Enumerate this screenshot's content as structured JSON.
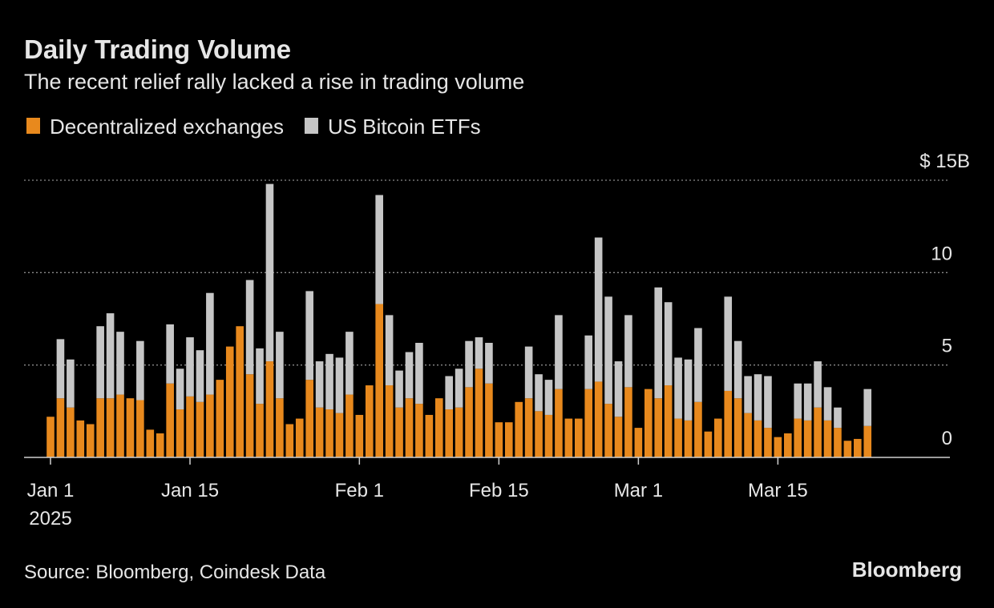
{
  "chart_data": {
    "type": "bar",
    "stacked": true,
    "title": "Daily Trading Volume",
    "subtitle": "The recent relief rally lacked a rise in trading volume",
    "source": "Source: Bloomberg, Coindesk Data",
    "brand": "Bloomberg",
    "year_label": "2025",
    "categories": [
      "2025-01-01",
      "2025-01-02",
      "2025-01-03",
      "2025-01-04",
      "2025-01-05",
      "2025-01-06",
      "2025-01-07",
      "2025-01-08",
      "2025-01-09",
      "2025-01-10",
      "2025-01-11",
      "2025-01-12",
      "2025-01-13",
      "2025-01-14",
      "2025-01-15",
      "2025-01-16",
      "2025-01-17",
      "2025-01-18",
      "2025-01-19",
      "2025-01-20",
      "2025-01-21",
      "2025-01-22",
      "2025-01-23",
      "2025-01-24",
      "2025-01-25",
      "2025-01-26",
      "2025-01-27",
      "2025-01-28",
      "2025-01-29",
      "2025-01-30",
      "2025-01-31",
      "2025-02-01",
      "2025-02-02",
      "2025-02-03",
      "2025-02-04",
      "2025-02-05",
      "2025-02-06",
      "2025-02-07",
      "2025-02-08",
      "2025-02-09",
      "2025-02-10",
      "2025-02-11",
      "2025-02-12",
      "2025-02-13",
      "2025-02-14",
      "2025-02-15",
      "2025-02-16",
      "2025-02-17",
      "2025-02-18",
      "2025-02-19",
      "2025-02-20",
      "2025-02-21",
      "2025-02-22",
      "2025-02-23",
      "2025-02-24",
      "2025-02-25",
      "2025-02-26",
      "2025-02-27",
      "2025-02-28",
      "2025-03-01",
      "2025-03-02",
      "2025-03-03",
      "2025-03-04",
      "2025-03-05",
      "2025-03-06",
      "2025-03-07",
      "2025-03-08",
      "2025-03-09",
      "2025-03-10",
      "2025-03-11",
      "2025-03-12",
      "2025-03-13",
      "2025-03-14",
      "2025-03-15",
      "2025-03-16",
      "2025-03-17",
      "2025-03-18",
      "2025-03-19",
      "2025-03-20",
      "2025-03-21",
      "2025-03-22",
      "2025-03-23",
      "2025-03-24"
    ],
    "series": [
      {
        "name": "Decentralized exchanges",
        "color": "#e8891d",
        "values": [
          2.2,
          3.2,
          2.7,
          2.0,
          1.8,
          3.2,
          3.2,
          3.4,
          3.2,
          3.1,
          1.5,
          1.3,
          4.0,
          2.6,
          3.3,
          3.0,
          3.4,
          4.2,
          6.0,
          7.1,
          4.5,
          2.9,
          5.2,
          3.2,
          1.8,
          2.1,
          4.2,
          2.7,
          2.6,
          2.4,
          3.4,
          2.3,
          3.9,
          8.3,
          3.9,
          2.7,
          3.2,
          2.9,
          2.3,
          3.2,
          2.6,
          2.7,
          3.8,
          4.8,
          4.0,
          1.9,
          1.9,
          3.0,
          3.2,
          2.5,
          2.3,
          3.7,
          2.1,
          2.1,
          3.7,
          4.1,
          2.9,
          2.2,
          3.8,
          1.6,
          3.7,
          3.2,
          3.9,
          2.1,
          2.0,
          3.0,
          1.4,
          2.1,
          3.6,
          3.2,
          2.4,
          2.0,
          1.6,
          1.1,
          1.3,
          2.1,
          2.0,
          2.7,
          2.0,
          1.6,
          0.9,
          1.0,
          1.7
        ]
      },
      {
        "name": "US Bitcoin ETFs",
        "color": "#c6c6c6",
        "values": [
          null,
          3.2,
          2.6,
          null,
          null,
          3.9,
          4.6,
          3.4,
          null,
          3.2,
          null,
          null,
          3.2,
          2.2,
          3.2,
          2.8,
          5.5,
          null,
          null,
          null,
          5.1,
          3.0,
          9.6,
          3.6,
          null,
          null,
          4.8,
          2.5,
          3.0,
          3.0,
          3.4,
          null,
          null,
          5.9,
          3.8,
          2.0,
          2.5,
          3.3,
          null,
          null,
          1.8,
          2.1,
          2.5,
          1.7,
          2.2,
          null,
          null,
          null,
          2.8,
          2.0,
          1.9,
          4.0,
          null,
          null,
          2.9,
          7.8,
          5.8,
          3.0,
          3.9,
          null,
          null,
          6.0,
          4.5,
          3.3,
          3.3,
          4.0,
          null,
          null,
          5.1,
          3.1,
          2.0,
          2.5,
          2.8,
          null,
          null,
          1.9,
          2.0,
          2.5,
          1.8,
          1.1,
          null,
          null,
          2.0
        ]
      }
    ],
    "ylim": [
      0,
      15
    ],
    "yticks": [
      0,
      5,
      10,
      {
        "value": 15,
        "label": "$ 15B"
      }
    ],
    "xticks": [
      {
        "value": "2025-01-01",
        "label": "Jan 1"
      },
      {
        "value": "2025-01-15",
        "label": "Jan 15"
      },
      {
        "value": "2025-02-01",
        "label": "Feb 1"
      },
      {
        "value": "2025-02-15",
        "label": "Feb 15"
      },
      {
        "value": "2025-03-01",
        "label": "Mar 1"
      },
      {
        "value": "2025-03-15",
        "label": "Mar 15"
      }
    ],
    "grid": true
  }
}
